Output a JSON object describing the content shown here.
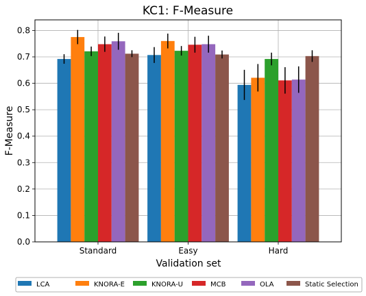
{
  "chart_data": {
    "type": "bar",
    "title": "KC1: F-Measure",
    "xlabel": "Validation set",
    "ylabel": "F-Measure",
    "categories": [
      "Standard",
      "Easy",
      "Hard"
    ],
    "ylim": [
      0,
      0.84
    ],
    "yticks": [
      "0.0",
      "0.1",
      "0.2",
      "0.3",
      "0.4",
      "0.5",
      "0.6",
      "0.7",
      "0.8"
    ],
    "grid": true,
    "legend_position": "bottom",
    "series": [
      {
        "name": "LCA",
        "color": "#1f77b4",
        "values": [
          0.692,
          0.707,
          0.594
        ],
        "errors": [
          0.018,
          0.03,
          0.057
        ]
      },
      {
        "name": "KNORA-E",
        "color": "#ff7f0e",
        "values": [
          0.775,
          0.76,
          0.621
        ],
        "errors": [
          0.027,
          0.028,
          0.052
        ]
      },
      {
        "name": "KNORA-U",
        "color": "#2ca02c",
        "values": [
          0.721,
          0.723,
          0.692
        ],
        "errors": [
          0.018,
          0.018,
          0.024
        ]
      },
      {
        "name": "MCB",
        "color": "#d62728",
        "values": [
          0.748,
          0.746,
          0.611
        ],
        "errors": [
          0.029,
          0.03,
          0.05
        ]
      },
      {
        "name": "OLA",
        "color": "#9467bd",
        "values": [
          0.759,
          0.748,
          0.614
        ],
        "errors": [
          0.032,
          0.032,
          0.05
        ]
      },
      {
        "name": "Static Selection",
        "color": "#8c564b",
        "values": [
          0.712,
          0.709,
          0.703
        ],
        "errors": [
          0.013,
          0.015,
          0.022
        ]
      }
    ]
  }
}
